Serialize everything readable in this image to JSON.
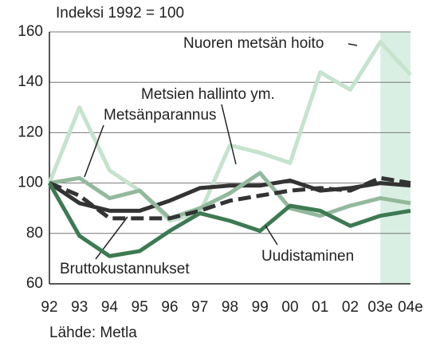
{
  "chart_data": {
    "type": "line",
    "title": "Indeksi 1992 = 100",
    "source": "Lähde: Metla",
    "categories": [
      "92",
      "93",
      "94",
      "95",
      "96",
      "97",
      "98",
      "99",
      "00",
      "01",
      "02",
      "03e",
      "04e"
    ],
    "ylim": [
      60,
      160
    ],
    "yticks": [
      60,
      80,
      100,
      120,
      140,
      160
    ],
    "grid": true,
    "series": [
      {
        "name": "Nuoren metsän hoito",
        "color": "#c6e3cd",
        "values": [
          100,
          130,
          105,
          97,
          85,
          88,
          115,
          112,
          108,
          144,
          137,
          156,
          143
        ]
      },
      {
        "name": "Metsien hallinto ym.",
        "color": "#333333",
        "values": [
          100,
          92,
          89,
          89,
          93,
          98,
          99,
          99,
          101,
          97,
          98,
          100,
          99
        ]
      },
      {
        "name": "Metsänparannus",
        "color": "#93b99d",
        "values": [
          100,
          102,
          94,
          97,
          86,
          90,
          96,
          104,
          90,
          87,
          91,
          94,
          92
        ]
      },
      {
        "name": "Bruttokustannukset",
        "color": "#333333",
        "dashed": true,
        "values": [
          100,
          95,
          86,
          86,
          86,
          89,
          93,
          95,
          97,
          98,
          97,
          102,
          100
        ]
      },
      {
        "name": "Uudistaminen",
        "color": "#3d7a52",
        "values": [
          100,
          79,
          71,
          73,
          81,
          88,
          85,
          81,
          91,
          89,
          83,
          87,
          89
        ]
      }
    ]
  }
}
